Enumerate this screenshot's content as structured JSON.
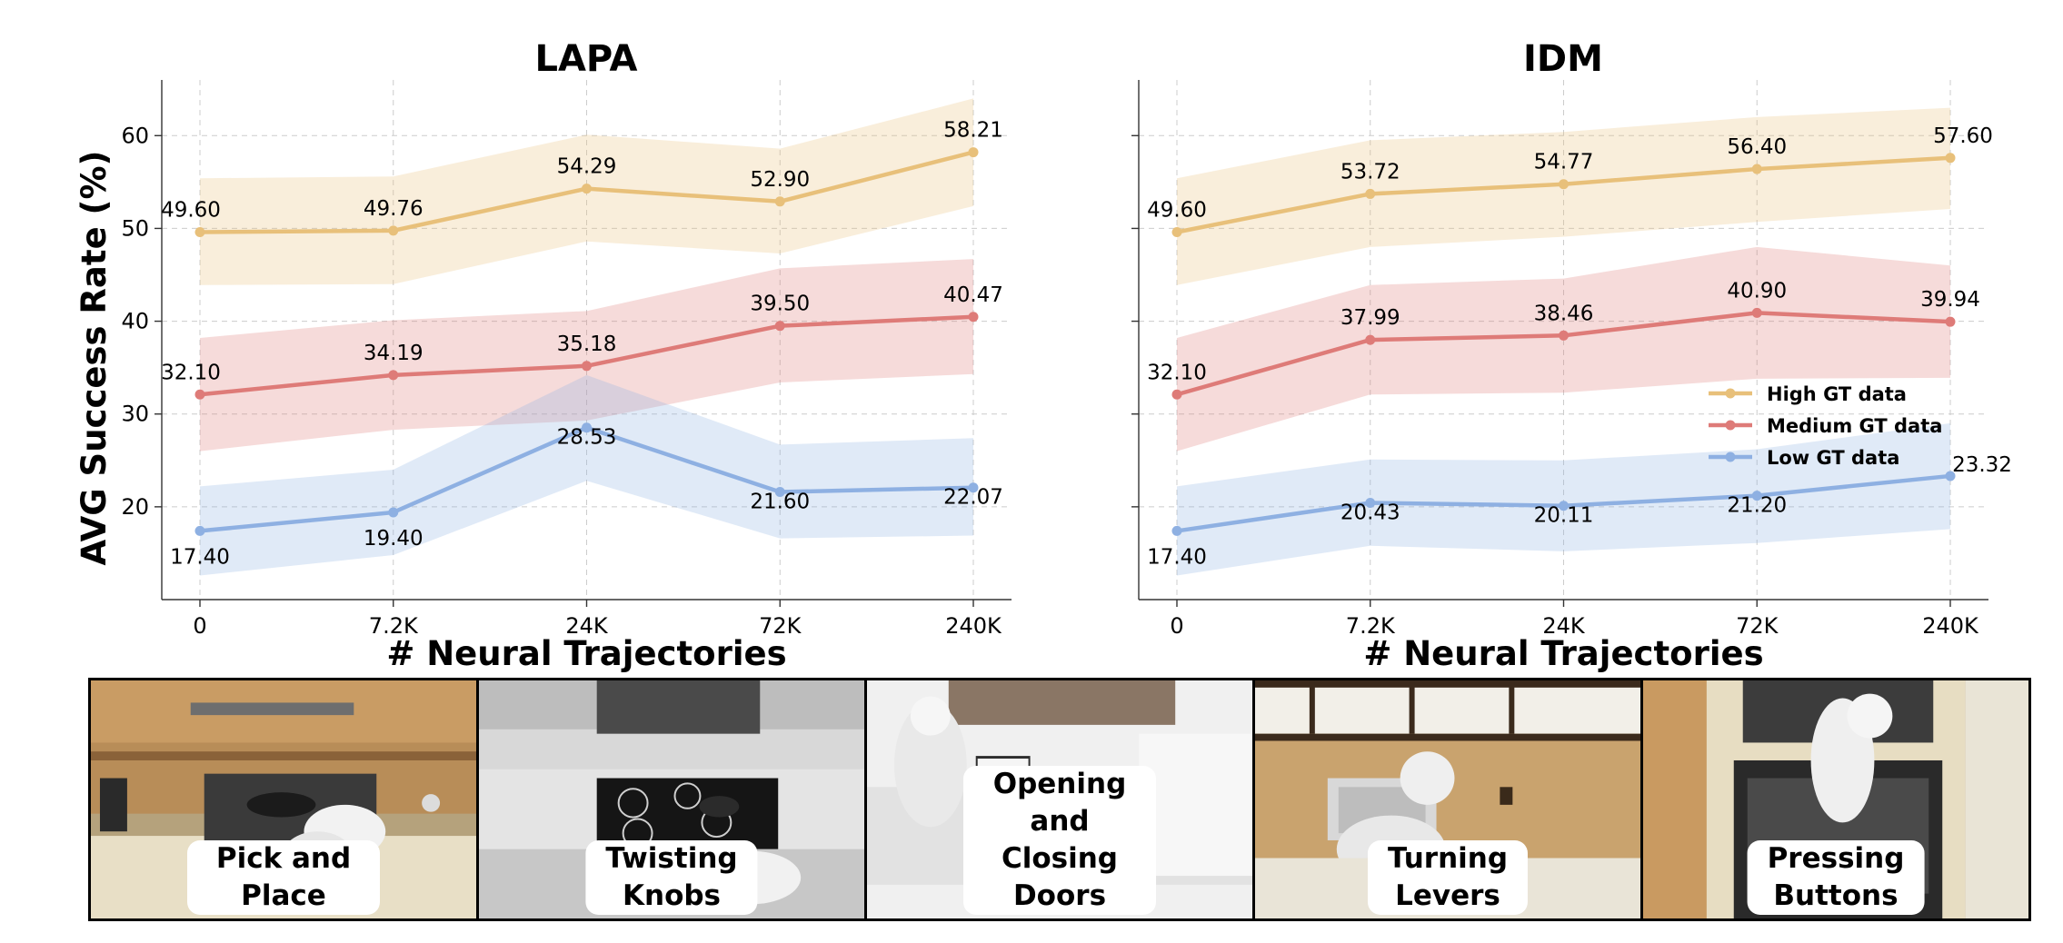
{
  "chart_data": [
    {
      "type": "line",
      "title": "LAPA",
      "xlabel": "# Neural Trajectories",
      "ylabel": "AVG Success Rate (%)",
      "categories": [
        "0",
        "7.2K",
        "24K",
        "72K",
        "240K"
      ],
      "ylim": [
        10,
        66
      ],
      "yticks": [
        "20",
        "30",
        "40",
        "50",
        "60"
      ],
      "grid": true,
      "series": [
        {
          "name": "High GT data",
          "color": "#e8c07a",
          "values": [
            49.6,
            49.76,
            54.29,
            52.9,
            58.21
          ],
          "labels": [
            "49.60",
            "49.76",
            "54.29",
            "52.90",
            "58.21"
          ],
          "band_low": [
            43.9,
            44.0,
            48.6,
            47.3,
            52.4
          ],
          "band_high": [
            55.4,
            55.6,
            60.1,
            58.6,
            64.0
          ]
        },
        {
          "name": "Medium GT data",
          "color": "#de7b78",
          "values": [
            32.1,
            34.19,
            35.18,
            39.5,
            40.47
          ],
          "labels": [
            "32.10",
            "34.19",
            "35.18",
            "39.50",
            "40.47"
          ],
          "band_low": [
            26.0,
            28.3,
            29.3,
            33.4,
            34.3
          ],
          "band_high": [
            38.2,
            40.1,
            41.1,
            45.7,
            46.7
          ]
        },
        {
          "name": "Low GT data",
          "color": "#8eb0e2",
          "values": [
            17.4,
            19.4,
            28.53,
            21.6,
            22.07
          ],
          "labels": [
            "17.40",
            "19.40",
            "28.53",
            "21.60",
            "22.07"
          ],
          "band_low": [
            12.6,
            14.8,
            22.8,
            16.6,
            16.9
          ],
          "band_high": [
            22.2,
            24.0,
            34.2,
            26.7,
            27.4
          ]
        }
      ]
    },
    {
      "type": "line",
      "title": "IDM",
      "xlabel": "# Neural Trajectories",
      "ylabel": "",
      "categories": [
        "0",
        "7.2K",
        "24K",
        "72K",
        "240K"
      ],
      "ylim": [
        10,
        66
      ],
      "grid": true,
      "legend": "right",
      "series": [
        {
          "name": "High GT data",
          "color": "#e8c07a",
          "values": [
            49.6,
            53.72,
            54.77,
            56.4,
            57.6
          ],
          "labels": [
            "49.60",
            "53.72",
            "54.77",
            "56.40",
            "57.60"
          ],
          "band_low": [
            43.9,
            48.0,
            49.1,
            50.7,
            52.1
          ],
          "band_high": [
            55.4,
            59.5,
            60.4,
            62.0,
            63.0
          ]
        },
        {
          "name": "Medium GT data",
          "color": "#de7b78",
          "values": [
            32.1,
            37.99,
            38.46,
            40.9,
            39.94
          ],
          "labels": [
            "32.10",
            "37.99",
            "38.46",
            "40.90",
            "39.94"
          ],
          "band_low": [
            26.0,
            32.1,
            32.3,
            33.8,
            33.9
          ],
          "band_high": [
            38.2,
            43.9,
            44.6,
            48.0,
            46.0
          ]
        },
        {
          "name": "Low GT data",
          "color": "#8eb0e2",
          "values": [
            17.4,
            20.43,
            20.11,
            21.2,
            23.32
          ],
          "labels": [
            "17.40",
            "20.43",
            "20.11",
            "21.20",
            "23.32"
          ],
          "band_low": [
            12.6,
            15.8,
            15.2,
            16.1,
            17.6
          ],
          "band_high": [
            22.2,
            25.1,
            25.0,
            26.2,
            29.0
          ]
        }
      ]
    }
  ],
  "tasks": [
    {
      "label": "Pick and Place"
    },
    {
      "label": "Twisting\nKnobs"
    },
    {
      "label": "Opening and Closing\nDoors"
    },
    {
      "label": "Turning\nLevers"
    },
    {
      "label": "Pressing\nButtons"
    }
  ]
}
